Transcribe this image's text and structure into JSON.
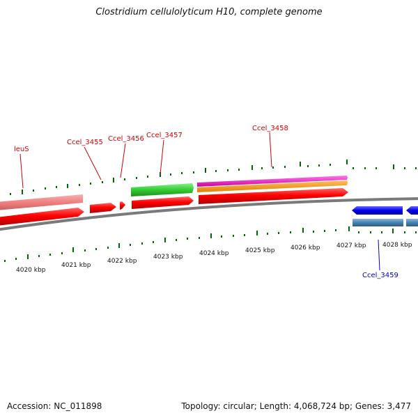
{
  "title": "Clostridium cellulolyticum H10, complete genome",
  "footer": {
    "accession": "Accession: NC_011898",
    "stats": "Topology: circular; Length: 4,068,724 bp; Genes: 3,477"
  },
  "kbp_labels": [
    "4020 kbp",
    "4021 kbp",
    "4022 kbp",
    "4023 kbp",
    "4024 kbp",
    "4025 kbp",
    "4026 kbp",
    "4027 kbp",
    "4028 kbp"
  ],
  "gene_labels": {
    "leuS": "leuS",
    "ccel_3455": "Ccel_3455",
    "ccel_3456": "Ccel_3456",
    "ccel_3457": "Ccel_3457",
    "ccel_3458": "Ccel_3458",
    "ccel_3459": "Ccel_3459"
  },
  "colors": {
    "forward_label": "#cc0000",
    "reverse_label": "#0000cc",
    "cds_forward": "#ff0000",
    "cds_reverse": "#0000ee",
    "gene_pink": "#f08080",
    "gene_green": "#33cc33",
    "gene_magenta": "#ff00cc",
    "gene_orange": "#ff9900",
    "gene_steel": "#4682b4",
    "backbone": "#808080",
    "tick": "#006600"
  }
}
